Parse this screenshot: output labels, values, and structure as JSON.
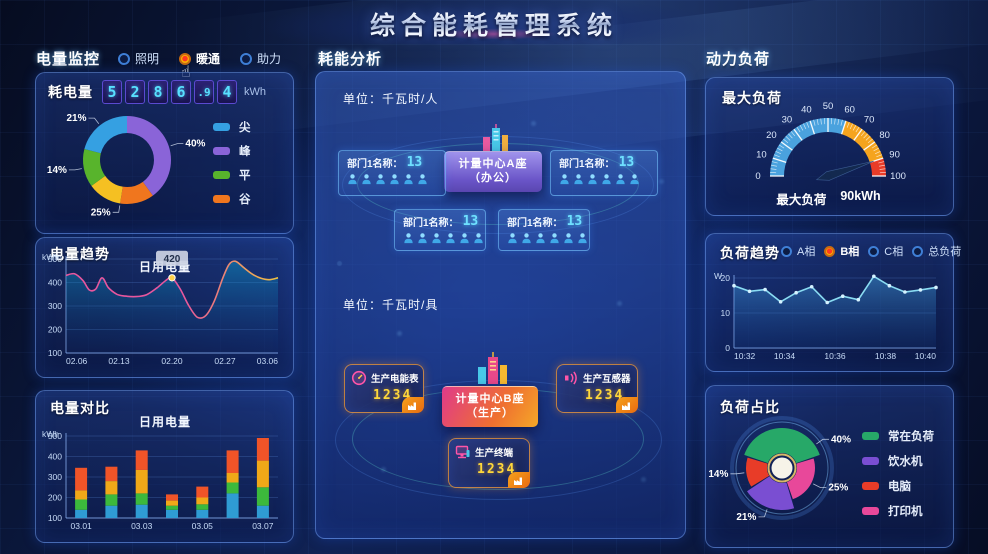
{
  "title": "综合能耗管理系统",
  "colors": {
    "accent_cyan": "#5ee0ff",
    "digit_value_orange": "#ffd83a",
    "radio_selected": "#ffb300",
    "panel_border": "#76a8ff"
  },
  "icons": {
    "hand_cursor": "☝",
    "person": "person-icon",
    "building": "building-icon",
    "meter": "meter-icon",
    "transformer": "transformer-icon",
    "terminal": "terminal-icon",
    "factory": "factory-icon"
  },
  "left": {
    "header": "电量监控",
    "radios": [
      {
        "label": "照明",
        "selected": false
      },
      {
        "label": "暖通",
        "selected": true
      },
      {
        "label": "助力",
        "selected": false
      }
    ],
    "consumption": {
      "label": "耗电量",
      "digits": [
        "5",
        "2",
        "8",
        "6",
        ".9",
        "4"
      ],
      "unit": "kWh"
    },
    "trend": {
      "title": "电量趋势"
    },
    "compare": {
      "title": "电量对比"
    }
  },
  "middle": {
    "header": "耗能分析",
    "unit_person": "单位：千瓦时/人",
    "unit_device": "单位：千瓦时/具",
    "center_a": {
      "line1": "计量中心A座",
      "line2": "（办公）"
    },
    "center_b": {
      "line1": "计量中心B座",
      "line2": "（生产）"
    },
    "departments": [
      {
        "label": "部门1名称：",
        "value": "13",
        "persons": 6
      },
      {
        "label": "部门1名称：",
        "value": "13",
        "persons": 6
      },
      {
        "label": "部门1名称：",
        "value": "13",
        "persons": 6
      },
      {
        "label": "部门1名称：",
        "value": "13",
        "persons": 6
      }
    ],
    "producers": [
      {
        "label": "生产电能表",
        "value": "1234",
        "icon": "meter-icon"
      },
      {
        "label": "生产互感器",
        "value": "1234",
        "icon": "transformer-icon"
      },
      {
        "label": "生产终端",
        "value": "1234",
        "icon": "terminal-icon"
      }
    ]
  },
  "right": {
    "header": "动力负荷",
    "gauge_panel": {
      "title": "最大负荷"
    },
    "trend_panel": {
      "title": "负荷趋势",
      "radios": [
        {
          "label": "A相",
          "selected": false
        },
        {
          "label": "B相",
          "selected": true
        },
        {
          "label": "C相",
          "selected": false
        },
        {
          "label": "总负荷",
          "selected": false
        }
      ]
    },
    "share_panel": {
      "title": "负荷占比"
    }
  },
  "chart_data": [
    {
      "id": "peak-valley-donut",
      "type": "pie",
      "variant": "donut",
      "slices": [
        {
          "label": "峰",
          "pct": 40,
          "color": "#8a64d8"
        },
        {
          "label": "谷",
          "pct": 25,
          "color": "#f0761e",
          "color2": "#f5c022"
        },
        {
          "label": "平",
          "pct": 14,
          "color": "#58b42c"
        },
        {
          "label": "尖",
          "pct": 21,
          "color": "#35a0e2"
        }
      ],
      "legend": [
        {
          "label": "尖",
          "color": "#35a0e2"
        },
        {
          "label": "峰",
          "color": "#8a64d8"
        },
        {
          "label": "平",
          "color": "#58b42c"
        },
        {
          "label": "谷",
          "color": "#f0761e"
        }
      ],
      "legend_position": "right"
    },
    {
      "id": "daily-trend",
      "type": "line",
      "title": "日用电量",
      "ylabel": "kWh",
      "yticks": [
        100,
        200,
        300,
        400,
        500
      ],
      "xticks": [
        "02.06",
        "02.13",
        "02.20",
        "02.27",
        "03.06"
      ],
      "points": [
        [
          0,
          430
        ],
        [
          0.04,
          437
        ],
        [
          0.08,
          408
        ],
        [
          0.11,
          368
        ],
        [
          0.14,
          372
        ],
        [
          0.17,
          420
        ],
        [
          0.2,
          378
        ],
        [
          0.24,
          350
        ],
        [
          0.28,
          342
        ],
        [
          0.33,
          340
        ],
        [
          0.38,
          348
        ],
        [
          0.43,
          378
        ],
        [
          0.47,
          408
        ],
        [
          0.5,
          420
        ],
        [
          0.54,
          370
        ],
        [
          0.58,
          300
        ],
        [
          0.62,
          252
        ],
        [
          0.66,
          260
        ],
        [
          0.7,
          322
        ],
        [
          0.74,
          420
        ],
        [
          0.77,
          478
        ],
        [
          0.8,
          490
        ],
        [
          0.84,
          462
        ],
        [
          0.88,
          435
        ],
        [
          0.92,
          418
        ],
        [
          0.96,
          412
        ],
        [
          1,
          420
        ]
      ],
      "marker": {
        "x": 0.5,
        "y": 420,
        "tooltip": "420"
      },
      "line_colors": [
        "#e8569e",
        "#f0c040"
      ],
      "grid": true
    },
    {
      "id": "daily-compare",
      "type": "bar",
      "title": "日用电量",
      "ylabel": "kWh",
      "yticks": [
        100,
        200,
        300,
        400,
        500
      ],
      "xticks": [
        "03.01",
        "03.03",
        "03.05",
        "03.07"
      ],
      "xtick_positions": [
        0,
        2,
        4,
        6
      ],
      "series_colors": [
        "#2f9cd4",
        "#3cb93c",
        "#f0a818",
        "#f05428"
      ],
      "bars": [
        [
          40,
          50,
          45,
          110
        ],
        [
          60,
          55,
          65,
          70
        ],
        [
          65,
          55,
          115,
          95
        ],
        [
          40,
          20,
          25,
          30
        ],
        [
          40,
          27,
          33,
          53
        ],
        [
          120,
          53,
          47,
          110
        ],
        [
          60,
          90,
          130,
          110
        ]
      ],
      "grid": true
    },
    {
      "id": "max-load-gauge",
      "type": "gauge",
      "min": 0,
      "max": 100,
      "tick_step": 10,
      "zones": [
        {
          "from": 0,
          "to": 60,
          "color": "#4aa2de"
        },
        {
          "from": 60,
          "to": 90,
          "color": "#f5a41e"
        },
        {
          "from": 90,
          "to": 100,
          "color": "#e83c28"
        }
      ],
      "value": 90,
      "label": "最大负荷",
      "value_text": "90kWh"
    },
    {
      "id": "load-trend",
      "type": "line",
      "ylabel": "W",
      "yticks": [
        0,
        10,
        20
      ],
      "xticks": [
        "10:32",
        "10:34",
        "10:36",
        "10:38",
        "10:40"
      ],
      "values": [
        17.8,
        16.2,
        16.7,
        13.2,
        15.8,
        17.5,
        13,
        14.8,
        13.8,
        20.5,
        17.8,
        16,
        16.6,
        17.3
      ],
      "line_color": "#8adcf2",
      "grid": true
    },
    {
      "id": "load-share-rose",
      "type": "pie",
      "variant": "rose",
      "start_offset": -72,
      "slices": [
        {
          "label": "常在负荷",
          "pct": 40,
          "color": "#27a868"
        },
        {
          "label": "打印机",
          "pct": 25,
          "color": "#e8489a"
        },
        {
          "label": "饮水机",
          "pct": 21,
          "color": "#7a4ed2"
        },
        {
          "label": "电脑",
          "pct": 14,
          "color": "#e83c28"
        }
      ],
      "legend": [
        {
          "label": "常在负荷",
          "color": "#27a868"
        },
        {
          "label": "饮水机",
          "color": "#7a4ed2"
        },
        {
          "label": "电脑",
          "color": "#e83c28"
        },
        {
          "label": "打印机",
          "color": "#e8489a"
        }
      ],
      "legend_position": "right"
    }
  ]
}
